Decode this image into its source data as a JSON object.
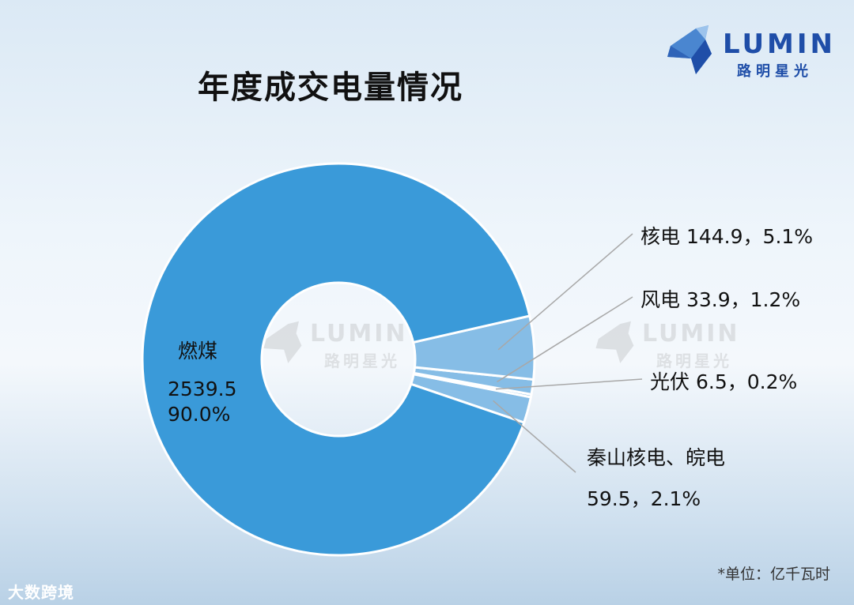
{
  "header": {
    "title": "年度成交电量情况",
    "logo_en": "LUMIN",
    "logo_cn": "路明星光"
  },
  "footer": {
    "unit_note": "*单位：亿千瓦时",
    "brand": "大数跨境"
  },
  "colors": {
    "main_slice": "#3a9ad9",
    "minor_slice": "#86bde6",
    "leader_line": "#a8a8a8",
    "logo": "#1f4ea8"
  },
  "chart_data": {
    "type": "pie",
    "title": "年度成交电量情况",
    "unit": "亿千瓦时",
    "style": "donut",
    "slices": [
      {
        "name": "燃煤",
        "value": 2539.5,
        "percent": "90.0%",
        "value_label": "2539.5",
        "percent_label": "90.0%"
      },
      {
        "name": "秦山核电、皖电",
        "value": 59.5,
        "percent": "2.1%",
        "value_label": "59.5，2.1%"
      },
      {
        "name": "光伏",
        "value": 6.5,
        "percent": "0.2%",
        "value_label": "6.5，0.2%"
      },
      {
        "name": "风电",
        "value": 33.9,
        "percent": "1.2%",
        "value_label": "33.9，1.2%"
      },
      {
        "name": "核电",
        "value": 144.9,
        "percent": "5.1%",
        "value_label": "144.9，5.1%"
      }
    ]
  }
}
